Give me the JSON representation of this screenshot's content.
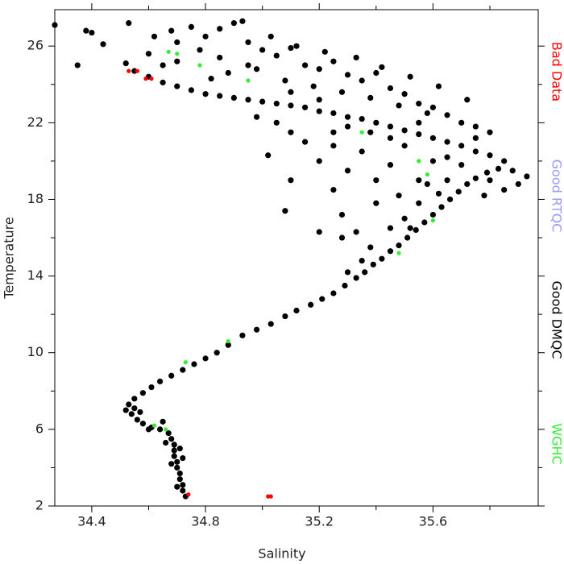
{
  "chart_data": {
    "type": "scatter",
    "x_label": "Salinity",
    "y_label": "Temperature",
    "xlim": [
      34.27,
      35.97
    ],
    "ylim": [
      2,
      27.9
    ],
    "xticks": [
      34.4,
      34.8,
      35.2,
      35.6
    ],
    "yticks": [
      2,
      6,
      10,
      14,
      18,
      22,
      26
    ],
    "legend": "right",
    "series": [
      {
        "name": "Bad Data",
        "color": "#ff0000",
        "x": [
          34.53,
          34.56,
          34.59,
          34.61,
          34.74,
          35.02,
          35.03
        ],
        "y": [
          24.7,
          24.7,
          24.3,
          24.3,
          2.6,
          2.5,
          2.5
        ]
      },
      {
        "name": "Good RTQC",
        "color": "#9999ff",
        "x": [],
        "y": []
      },
      {
        "name": "Good DMQC",
        "color": "#000000",
        "x": [
          34.73,
          34.72,
          34.72,
          34.71,
          34.71,
          34.7,
          34.7,
          34.69,
          34.69,
          34.69,
          34.68,
          34.67,
          34.7,
          34.68,
          34.71,
          34.66,
          34.72,
          34.64,
          34.61,
          34.58,
          34.56,
          34.54,
          34.52,
          34.53,
          34.55,
          34.58,
          34.61,
          34.6,
          34.57,
          34.65,
          34.55,
          34.64,
          34.68,
          34.72,
          34.76,
          34.8,
          34.84,
          34.88,
          34.93,
          34.98,
          35.03,
          35.08,
          35.12,
          35.17,
          35.21,
          35.25,
          35.29,
          35.33,
          35.36,
          35.39,
          35.42,
          35.45,
          35.48,
          35.51,
          35.54,
          35.57,
          35.6,
          35.63,
          35.66,
          35.69,
          35.72,
          35.75,
          35.79,
          35.83,
          35.88,
          35.93,
          35.3,
          35.35,
          35.28,
          35.38,
          35.45,
          35.5,
          35.55,
          35.48,
          35.52,
          35.62,
          35.65,
          35.4,
          35.33,
          35.58,
          35.85,
          35.8,
          35.75,
          35.7,
          35.65,
          35.6,
          35.55,
          35.5,
          35.45,
          35.4,
          35.35,
          35.3,
          35.25,
          35.2,
          35.15,
          35.1,
          35.05,
          35.0,
          34.95,
          34.9,
          34.85,
          34.8,
          34.75,
          34.7,
          34.65,
          34.6,
          34.55,
          34.52,
          35.7,
          35.75,
          35.6,
          35.5,
          35.45,
          35.38,
          35.55,
          35.3,
          35.2,
          35.1,
          35.25,
          35.65,
          35.8,
          35.9,
          35.85,
          35.78,
          34.62,
          34.7,
          34.75,
          34.8,
          34.85,
          34.9,
          34.93,
          34.78,
          34.85,
          34.95,
          35.0,
          35.05,
          35.1,
          35.15,
          35.2,
          35.25,
          35.3,
          35.35,
          35.4,
          35.45,
          35.5,
          35.55,
          35.6,
          35.65,
          35.7,
          35.75,
          35.8,
          34.7,
          34.88,
          34.98,
          35.08,
          35.18,
          35.28,
          35.38,
          35.48,
          35.58,
          34.95,
          35.03,
          35.12,
          34.82,
          34.65,
          34.6,
          34.68,
          35.22,
          35.33,
          35.42,
          35.52,
          35.62,
          35.72,
          35.25,
          35.3,
          35.35,
          35.2,
          35.15,
          35.4,
          35.45,
          35.55,
          35.05,
          34.98,
          35.1,
          34.27,
          34.38,
          34.4,
          34.35,
          34.44,
          34.53,
          35.08,
          35.02,
          35.1,
          35.25,
          35.28,
          35.2
        ],
        "y": [
          2.5,
          2.8,
          3.1,
          3.4,
          3.7,
          4.0,
          4.3,
          4.6,
          4.9,
          5.2,
          5.5,
          5.8,
          3.0,
          4.2,
          5.0,
          5.3,
          4.5,
          6.0,
          6.1,
          6.3,
          6.5,
          6.8,
          7.0,
          7.3,
          7.6,
          7.9,
          8.2,
          6.0,
          6.9,
          6.4,
          7.1,
          8.5,
          8.8,
          9.1,
          9.4,
          9.7,
          10.0,
          10.4,
          10.9,
          11.2,
          11.5,
          11.9,
          12.2,
          12.5,
          12.8,
          13.1,
          13.5,
          13.9,
          14.2,
          14.6,
          14.9,
          15.3,
          15.6,
          16.0,
          16.4,
          16.8,
          17.2,
          17.6,
          18.0,
          18.4,
          18.8,
          19.1,
          19.4,
          19.6,
          19.5,
          19.2,
          14.2,
          14.8,
          16.0,
          15.5,
          16.5,
          17.0,
          17.8,
          18.2,
          16.5,
          18.3,
          19.0,
          17.8,
          16.3,
          18.8,
          20.0,
          20.3,
          20.5,
          20.8,
          21.0,
          21.2,
          21.4,
          21.6,
          21.8,
          22.0,
          22.2,
          22.3,
          22.5,
          22.6,
          22.8,
          22.9,
          23.0,
          23.1,
          23.2,
          23.3,
          23.4,
          23.5,
          23.7,
          23.9,
          24.1,
          24.4,
          24.7,
          25.1,
          19.8,
          21.2,
          20.0,
          20.8,
          21.2,
          21.5,
          22.0,
          21.8,
          23.2,
          23.6,
          21.5,
          20.2,
          19.0,
          18.8,
          18.5,
          18.2,
          26.5,
          26.2,
          27.0,
          26.5,
          26.9,
          27.2,
          27.3,
          25.8,
          25.4,
          26.2,
          25.8,
          25.5,
          25.9,
          25.0,
          24.8,
          25.2,
          24.5,
          24.2,
          24.6,
          23.8,
          23.5,
          23.0,
          22.8,
          22.4,
          22.0,
          21.8,
          21.5,
          25.2,
          24.6,
          24.8,
          24.2,
          23.9,
          23.6,
          23.3,
          22.9,
          22.5,
          25.0,
          26.5,
          26.0,
          24.3,
          25.0,
          25.6,
          26.8,
          25.7,
          25.4,
          24.9,
          24.4,
          23.9,
          23.2,
          20.8,
          19.5,
          20.5,
          20.0,
          21.0,
          19.0,
          19.8,
          19.0,
          22.0,
          22.3,
          21.5,
          27.1,
          26.8,
          26.7,
          25.0,
          26.1,
          27.2,
          17.4,
          20.3,
          19.0,
          18.5,
          17.2,
          16.3
        ]
      },
      {
        "name": "WGHC",
        "color": "#33ee33",
        "x": [
          34.67,
          34.7,
          34.78,
          34.95,
          35.58,
          35.6,
          35.48,
          34.88,
          34.73,
          34.62,
          34.66,
          35.55,
          35.35
        ],
        "y": [
          25.7,
          25.6,
          25.0,
          24.2,
          19.3,
          16.9,
          15.2,
          10.6,
          9.5,
          6.2,
          6.0,
          20.0,
          21.5
        ]
      }
    ]
  }
}
